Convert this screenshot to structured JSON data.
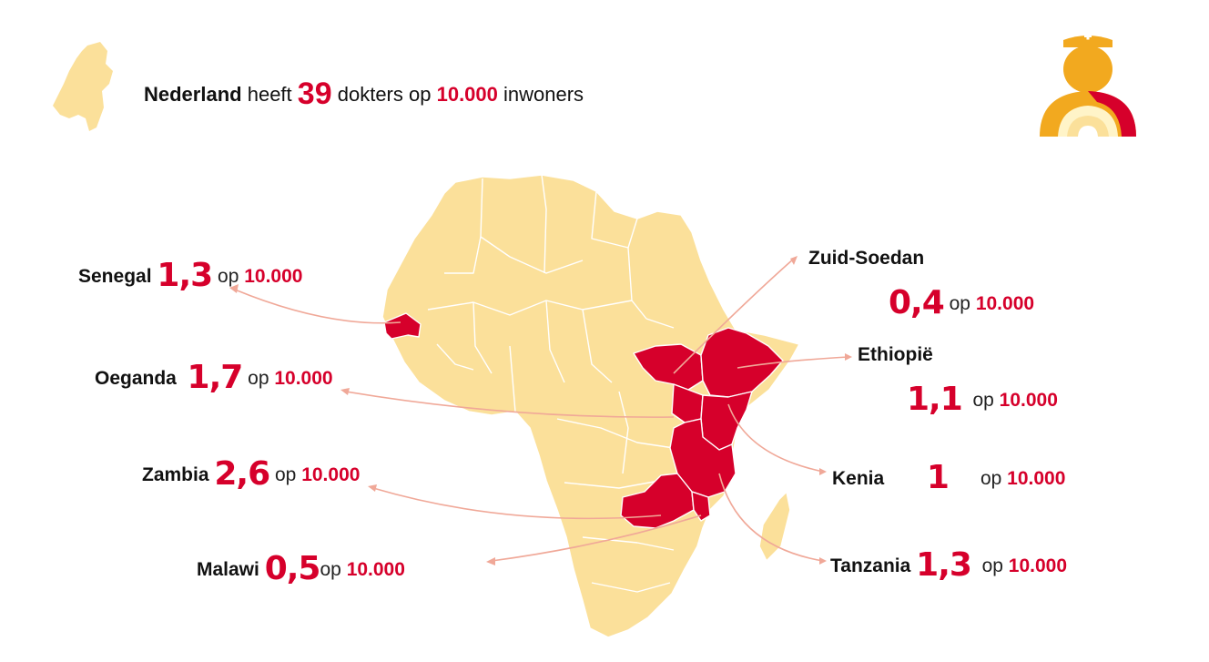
{
  "headline": {
    "country": "Nederland",
    "verb": "heeft",
    "count": "39",
    "mid": "dokters op",
    "per": "10.000",
    "tail": "inwoners"
  },
  "countries": [
    {
      "id": "senegal",
      "name": "Senegal",
      "value": "1,3",
      "op": "op",
      "per": "10.000"
    },
    {
      "id": "oeganda",
      "name": "Oeganda",
      "value": "1,7",
      "op": "op",
      "per": "10.000"
    },
    {
      "id": "zambia",
      "name": "Zambia",
      "value": "2,6",
      "op": "op",
      "per": "10.000"
    },
    {
      "id": "malawi",
      "name": "Malawi",
      "value": "0,5",
      "op": "op",
      "per": "10.000"
    },
    {
      "id": "zuid-soedan",
      "name": "Zuid-Soedan",
      "value": "0,4",
      "op": "op",
      "per": "10.000"
    },
    {
      "id": "ethiopie",
      "name": "Ethiopië",
      "value": "1,1",
      "op": "op",
      "per": "10.000"
    },
    {
      "id": "kenia",
      "name": "Kenia",
      "value": "1",
      "op": "op",
      "per": "10.000"
    },
    {
      "id": "tanzania",
      "name": "Tanzania",
      "value": "1,3",
      "op": "op",
      "per": "10.000"
    }
  ],
  "colors": {
    "map_fill": "#fbe09a",
    "highlight": "#d6002b",
    "arrow": "#f0a898",
    "icon_orange": "#f2a91f"
  },
  "icons": [
    "netherlands-map-icon",
    "doctor-icon",
    "africa-map"
  ]
}
